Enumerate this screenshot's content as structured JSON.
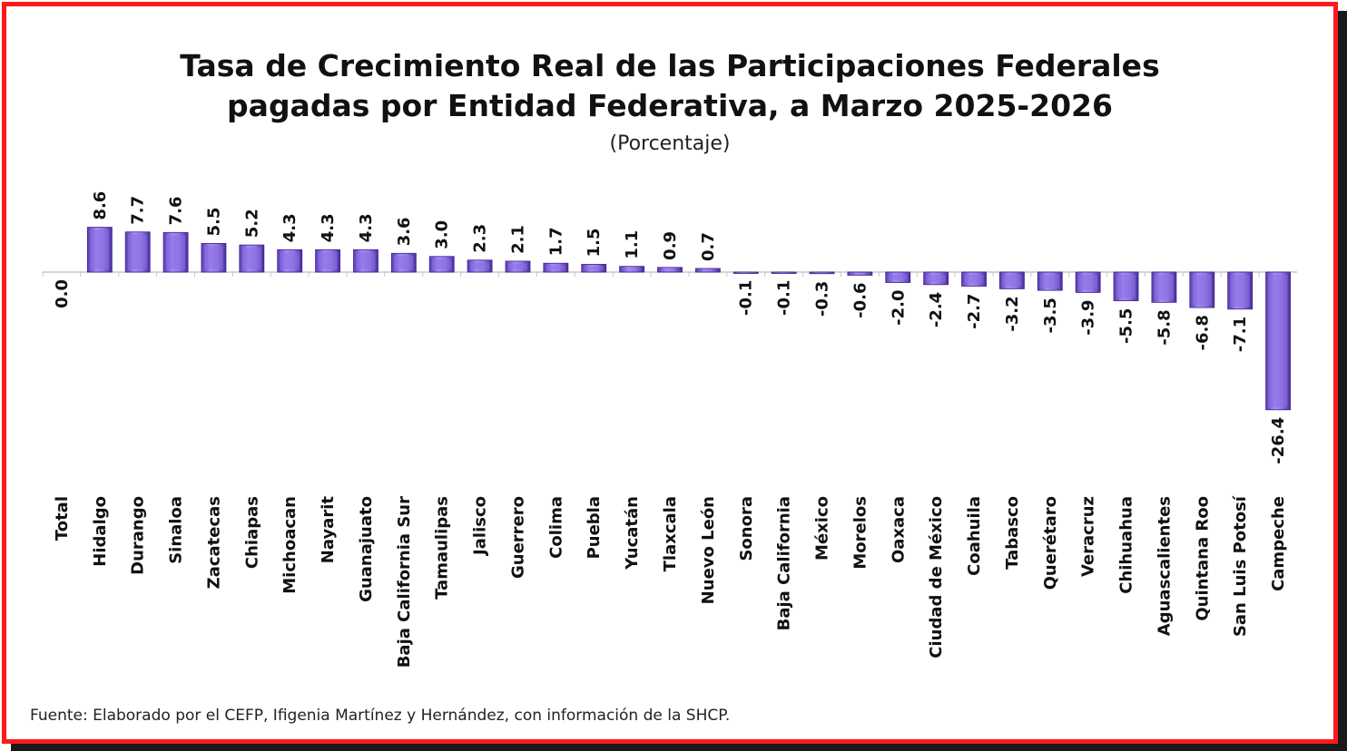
{
  "chart_data": {
    "type": "bar",
    "title_lines": [
      "Tasa de Crecimiento Real de las Participaciones Federales",
      "pagadas por Entidad Federativa, a Marzo 2025-2026"
    ],
    "subtitle": "(Porcentaje)",
    "source": "Fuente: Elaborado por el CEFP, Ifigenia Martínez y Hernández, con información de la SHCP.",
    "categories": [
      "Total",
      "Hidalgo",
      "Durango",
      "Sinaloa",
      "Zacatecas",
      "Chiapas",
      "Michoacan",
      "Nayarit",
      "Guanajuato",
      "Baja California Sur",
      "Tamaulipas",
      "Jalisco",
      "Guerrero",
      "Colima",
      "Puebla",
      "Yucatán",
      "Tlaxcala",
      "Nuevo León",
      "Sonora",
      "Baja California",
      "México",
      "Morelos",
      "Oaxaca",
      "Ciudad de México",
      "Coahuila",
      "Tabasco",
      "Querétaro",
      "Veracruz",
      "Chihuahua",
      "Aguascalientes",
      "Quintana Roo",
      "San Luis Potosí",
      "Campeche"
    ],
    "values": [
      0.0,
      8.6,
      7.7,
      7.6,
      5.5,
      5.2,
      4.3,
      4.3,
      4.3,
      3.6,
      3.0,
      2.3,
      2.1,
      1.7,
      1.5,
      1.1,
      0.9,
      0.7,
      -0.1,
      -0.1,
      -0.3,
      -0.6,
      -2.0,
      -2.4,
      -2.7,
      -3.2,
      -3.5,
      -3.9,
      -5.5,
      -5.8,
      -6.8,
      -7.1,
      -26.4
    ],
    "value_labels": [
      "0.0",
      "8.6",
      "7.7",
      "7.6",
      "5.5",
      "5.2",
      "4.3",
      "4.3",
      "4.3",
      "3.6",
      "3.0",
      "2.3",
      "2.1",
      "1.7",
      "1.5",
      "1.1",
      "0.9",
      "0.7",
      "-0.1",
      "-0.1",
      "-0.3",
      "-0.6",
      "-2.0",
      "-2.4",
      "-2.7",
      "-3.2",
      "-3.5",
      "-3.9",
      "-5.5",
      "-5.8",
      "-6.8",
      "-7.1",
      "-26.4"
    ],
    "xlabel": "",
    "ylabel": "",
    "grid": false,
    "legend": "none",
    "colors": {
      "bar": "#8b6fe0",
      "bar_dark": "#4b2fa0",
      "bar_light": "#c9b8ff",
      "border": "#ff1a1a"
    }
  }
}
